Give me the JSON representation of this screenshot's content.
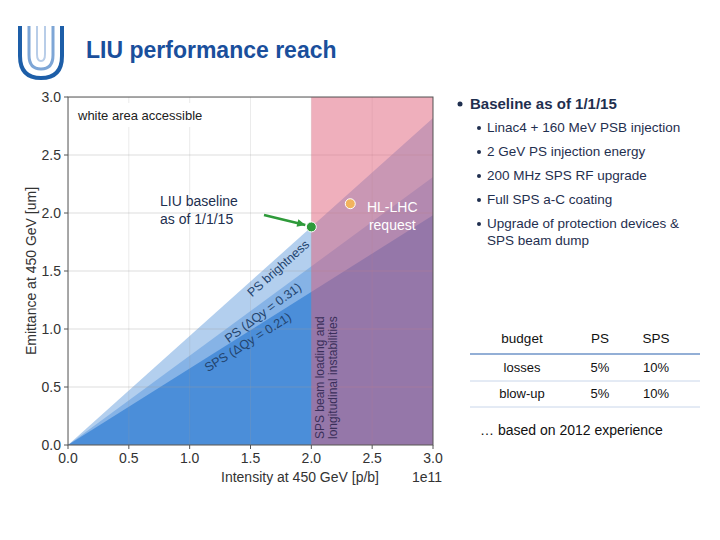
{
  "header": {
    "title": "LIU performance reach"
  },
  "chart_data": {
    "type": "area",
    "x_label": "Intensity at 450 GeV [p/b]",
    "x_multiplier": "1e11",
    "y_label": "Emittance at 450 GeV [um]",
    "xlim": [
      0,
      3
    ],
    "ylim": [
      0,
      3
    ],
    "xticks": [
      {
        "value": 0,
        "label": "0.0"
      },
      0.5,
      {
        "value": 1,
        "label": "1.0"
      },
      1.5,
      {
        "value": 2,
        "label": "2.0"
      },
      2.5,
      {
        "value": 3,
        "label": "3.0"
      }
    ],
    "yticks": [
      {
        "value": 0,
        "label": "0.0"
      },
      0.5,
      {
        "value": 1,
        "label": "1.0"
      },
      1.5,
      {
        "value": 2,
        "label": "2.0"
      },
      2.5,
      {
        "value": 3,
        "label": "3.0"
      }
    ],
    "grid": true,
    "series": [
      {
        "name": "PS brightness",
        "color": "#b3cfee",
        "x": [
          0,
          3
        ],
        "values": [
          0,
          2.82
        ]
      },
      {
        "name": "PS (ΔQy = 0.31)",
        "color": "#86b3e6",
        "x": [
          0,
          3
        ],
        "values": [
          0,
          2.31
        ]
      },
      {
        "name": "SPS (ΔQy = 0.21)",
        "color": "#4b8ed9",
        "x": [
          0,
          3
        ],
        "values": [
          0,
          1.98
        ]
      }
    ],
    "regions": [
      {
        "label": [
          "SPS beam loading and",
          "longitudinal instabilities"
        ],
        "x": [
          2,
          3
        ],
        "color": "#e0607a"
      }
    ],
    "points": [
      {
        "label": [
          "LIU baseline",
          "as of 1/1/15"
        ],
        "x": 2,
        "y": 1.88,
        "color": "#2e9a3a"
      },
      {
        "label": [
          "HL-LHC",
          "request"
        ],
        "x": 2.32,
        "y": 2.08,
        "color": "#f2b35e"
      }
    ],
    "annotations": [
      "white area accessible"
    ]
  },
  "bullets": {
    "heading": "Baseline as of 1/1/15",
    "items": [
      [
        "Linac4 + 160 MeV PSB injection"
      ],
      [
        "2 GeV PS injection energy"
      ],
      [
        "200 MHz SPS RF upgrade"
      ],
      [
        "Full SPS a-C coating"
      ],
      [
        "Upgrade of protection devices &",
        "SPS beam dump"
      ]
    ]
  },
  "table": {
    "header": [
      "budget",
      "PS",
      "SPS"
    ],
    "rows": [
      [
        "losses",
        "5%",
        "10%"
      ],
      [
        "blow-up",
        "5%",
        "10%"
      ]
    ]
  },
  "note": "… based on 2012 experience"
}
